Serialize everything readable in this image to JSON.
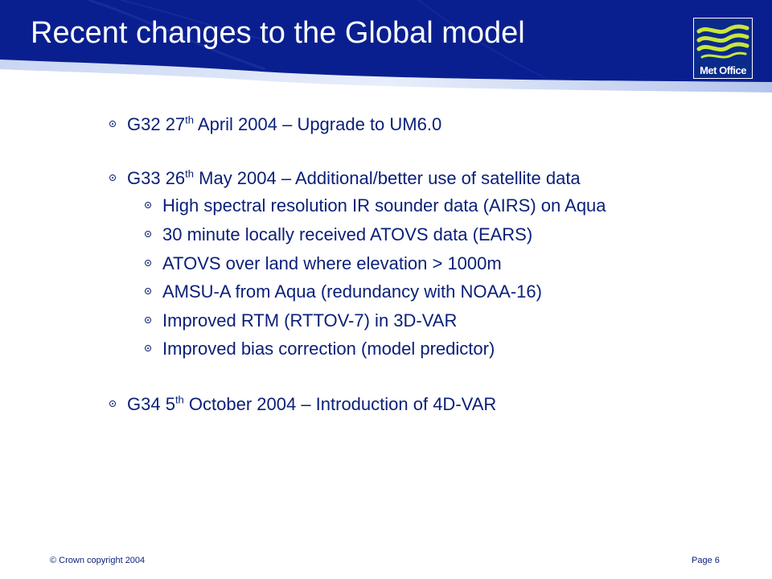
{
  "slide": {
    "title": "Recent changes to the Global model",
    "logo_text": "Met Office",
    "colors": {
      "header_blue": "#0a1f8f",
      "text_blue": "#0a1f78",
      "logo_green": "#c8e63c"
    },
    "bullets": [
      {
        "pre": "G32 27",
        "sup": "th",
        "post": " April 2004 – Upgrade to UM6.0"
      },
      {
        "pre": "G33 26",
        "sup": "th",
        "post": " May 2004 – Additional/better use of satellite data"
      },
      {
        "pre": "G34 5",
        "sup": "th",
        "post": " October 2004 – Introduction of 4D-VAR"
      }
    ],
    "sub_bullets": [
      "High spectral resolution IR sounder data (AIRS) on Aqua",
      "30 minute locally received ATOVS data (EARS)",
      "ATOVS over land where elevation > 1000m",
      "AMSU-A from Aqua (redundancy with NOAA-16)",
      "Improved RTM (RTTOV-7) in 3D-VAR",
      "Improved bias correction (model predictor)"
    ],
    "footer": {
      "copyright": "© Crown copyright 2004",
      "page": "Page 6"
    }
  }
}
